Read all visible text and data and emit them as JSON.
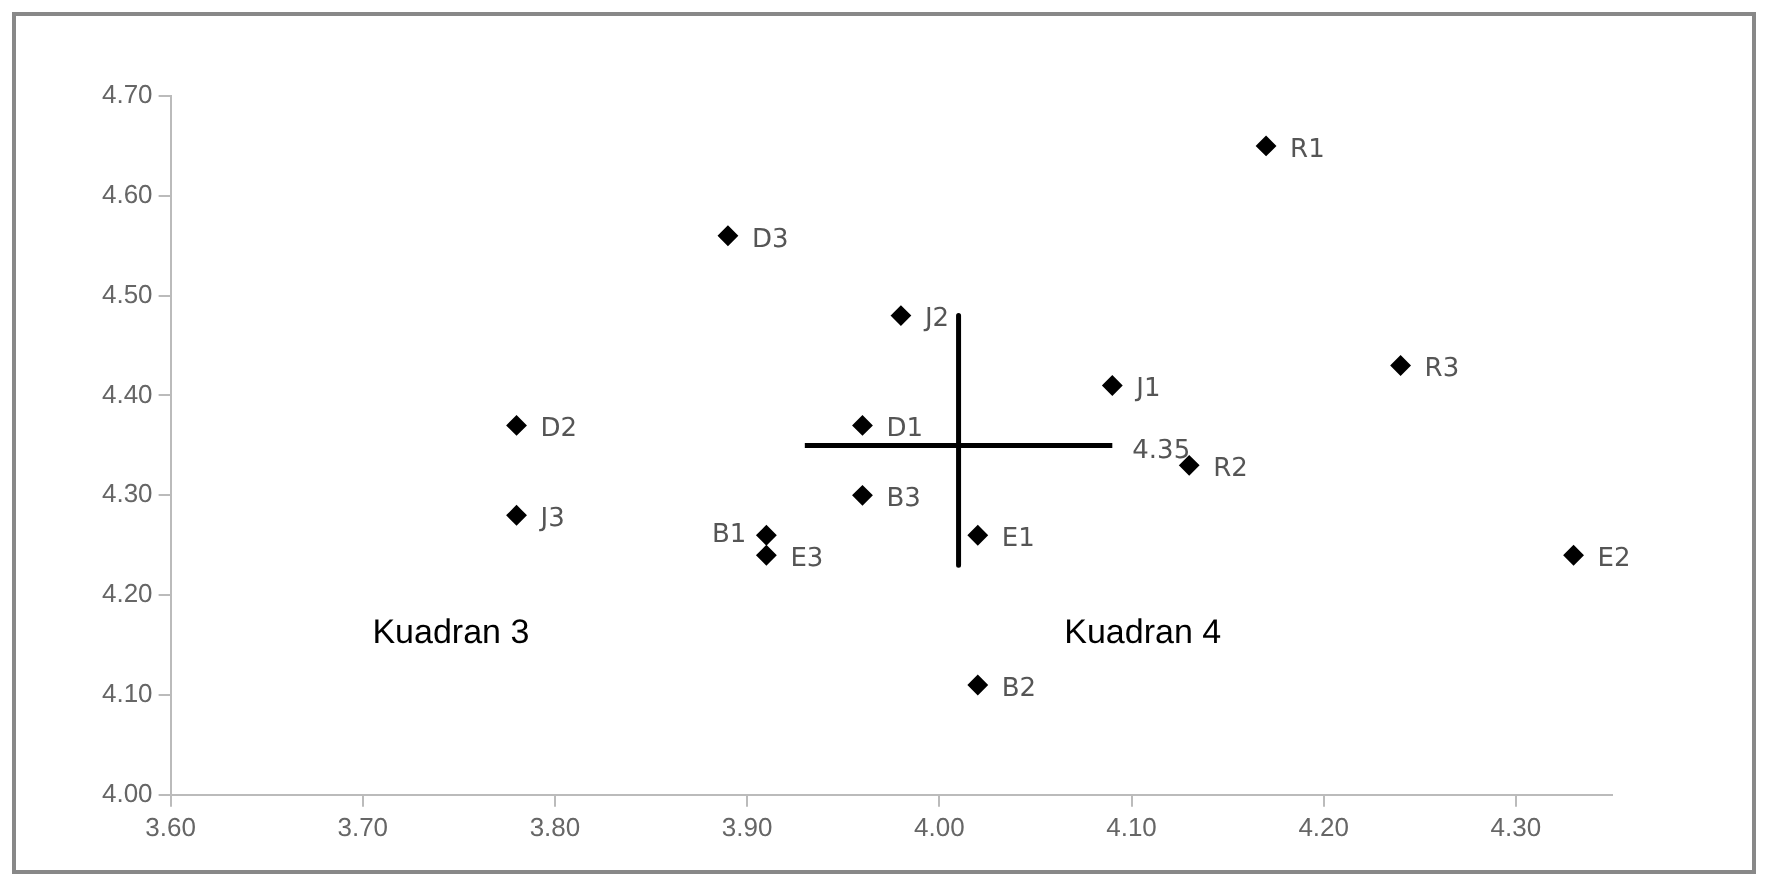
{
  "chart_data": {
    "type": "scatter",
    "marker": "diamond",
    "grid": false,
    "legend": false,
    "xlim": [
      3.6,
      4.35
    ],
    "ylim": [
      4.0,
      4.7
    ],
    "xticks": [
      {
        "value": 3.6,
        "label": "3.60"
      },
      {
        "value": 3.7,
        "label": "3.70"
      },
      {
        "value": 3.8,
        "label": "3.80"
      },
      {
        "value": 3.9,
        "label": "3.90"
      },
      {
        "value": 4.0,
        "label": "4.00"
      },
      {
        "value": 4.1,
        "label": "4.10"
      },
      {
        "value": 4.2,
        "label": "4.20"
      },
      {
        "value": 4.3,
        "label": "4.30"
      }
    ],
    "yticks": [
      {
        "value": 4.0,
        "label": "4.00"
      },
      {
        "value": 4.1,
        "label": "4.10"
      },
      {
        "value": 4.2,
        "label": "4.20"
      },
      {
        "value": 4.3,
        "label": "4.30"
      },
      {
        "value": 4.4,
        "label": "4.40"
      },
      {
        "value": 4.5,
        "label": "4.50"
      },
      {
        "value": 4.6,
        "label": "4.60"
      },
      {
        "value": 4.7,
        "label": "4.70"
      }
    ],
    "series": [
      {
        "color": "#000000",
        "x": [
          3.78,
          3.78,
          3.89,
          3.91,
          3.91,
          3.96,
          3.96,
          3.98,
          4.02,
          4.02,
          4.09,
          4.13,
          4.17,
          4.24,
          4.33
        ],
        "values": [
          4.37,
          4.28,
          4.56,
          4.26,
          4.24,
          4.37,
          4.3,
          4.48,
          4.26,
          4.11,
          4.41,
          4.33,
          4.65,
          4.43,
          4.24
        ],
        "value_labels": [
          "D2",
          "J3",
          "D3",
          "B1",
          "E3",
          "D1",
          "B3",
          "J2",
          "E1",
          "B2",
          "J1",
          "R2",
          "R1",
          "R3",
          "E2"
        ]
      },
      {
        "type": "line",
        "color": "#000000",
        "marker": "none",
        "x": [
          3.93,
          4.09
        ],
        "values": [
          4.35,
          4.35
        ]
      },
      {
        "type": "line",
        "color": "#000000",
        "marker": "none",
        "x": [
          4.01,
          4.01
        ],
        "values": [
          4.48,
          4.23
        ]
      }
    ],
    "annotations": [
      {
        "text": "4.35",
        "x": 4.09,
        "y": 4.35
      },
      "Kuadran 3",
      "Kuadran 4"
    ]
  }
}
